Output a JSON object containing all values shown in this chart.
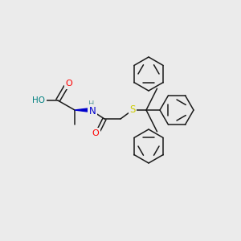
{
  "background_color": "#ebebeb",
  "bond_color": "#1a1a1a",
  "atom_colors": {
    "O": "#ff0000",
    "N": "#0000cd",
    "S": "#cccc00",
    "H_on_O": "#008080",
    "H_on_N": "#5f9ea0",
    "C": "#1a1a1a"
  },
  "figsize": [
    3.0,
    3.0
  ],
  "dpi": 100,
  "scale": 1.0
}
